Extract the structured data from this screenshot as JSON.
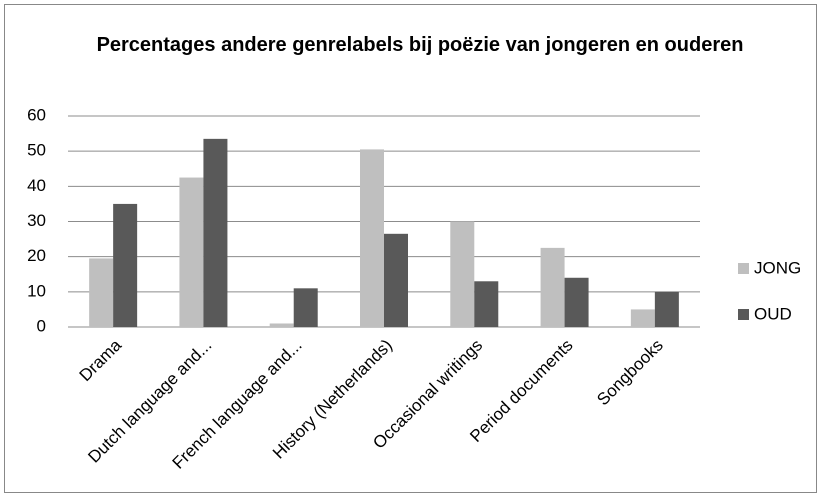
{
  "chart_data": {
    "type": "bar",
    "title": "Percentages andere genrelabels bij poëzie van jongeren en ouderen",
    "categories": [
      "Drama",
      "Dutch language and...",
      "French language and...",
      "History (Netherlands)",
      "Occasional writings",
      "Period documents",
      "Songbooks"
    ],
    "series": [
      {
        "name": "JONG",
        "color": "#bfbfbf",
        "values": [
          19.5,
          42.5,
          1,
          50.5,
          30,
          22.5,
          5
        ]
      },
      {
        "name": "OUD",
        "color": "#595959",
        "values": [
          35,
          53.5,
          11,
          26.5,
          13,
          14,
          10
        ]
      }
    ],
    "ylim": [
      0,
      60
    ],
    "yticks": [
      0,
      10,
      20,
      30,
      40,
      50,
      60
    ],
    "grid": true,
    "legend": "right"
  }
}
